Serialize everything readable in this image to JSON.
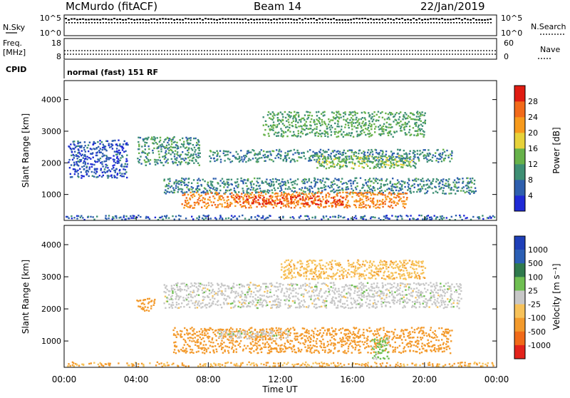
{
  "header": {
    "station": "McMurdo (fitACF)",
    "beam": "Beam 14",
    "date": "22/Jan/2019"
  },
  "strips": {
    "nsky_label": "N.Sky",
    "nsky_ticks": [
      "10^5",
      "10^0"
    ],
    "nsearch_label": "N.Search",
    "nsearch_ticks": [
      "10^5",
      "10^0"
    ],
    "freq_label_1": "Freq.",
    "freq_label_2": "[MHz]",
    "freq_ticks": [
      "18",
      "8"
    ],
    "nave_label": "Nave",
    "nave_ticks": [
      "60",
      "0"
    ],
    "cpid_label": "CPID",
    "cpid_value": "normal (fast) 151 RF"
  },
  "colors": {
    "power": [
      "#1f2ad6",
      "#2e5fae",
      "#3e8f74",
      "#67b24a",
      "#e7d23a",
      "#f79a1c",
      "#f26a1a",
      "#e01c12"
    ],
    "velocity": [
      "#e3231b",
      "#f16a18",
      "#f39a2c",
      "#f7c25a",
      "#c7c7c7",
      "#6fbf52",
      "#2f7a4d",
      "#2b5fb4",
      "#1e3fb8"
    ]
  },
  "chart_data": [
    {
      "type": "heatmap",
      "panel": "power",
      "ylabel": "Slant Range [km]",
      "ylim": [
        180,
        4600
      ],
      "yticks": [
        "1000",
        "2000",
        "3000",
        "4000"
      ],
      "colorbar_label": "Power [dB]",
      "colorbar_ticks": [
        "4",
        "8",
        "12",
        "16",
        "20",
        "24",
        "28"
      ],
      "colorbar_range": [
        0,
        32
      ],
      "echo_regions": [
        {
          "t0": 0.0,
          "t1": 24.0,
          "r0": 180,
          "r1": 320,
          "value": 6
        },
        {
          "t0": 0.2,
          "t1": 3.5,
          "r0": 1500,
          "r1": 2700,
          "value": 5
        },
        {
          "t0": 4.0,
          "t1": 7.5,
          "r0": 1900,
          "r1": 2800,
          "value": 10
        },
        {
          "t0": 5.5,
          "t1": 22.8,
          "r0": 1000,
          "r1": 1500,
          "value": 9
        },
        {
          "t0": 6.5,
          "t1": 19.0,
          "r0": 550,
          "r1": 1050,
          "value": 24
        },
        {
          "t0": 9.5,
          "t1": 15.5,
          "r0": 650,
          "r1": 950,
          "value": 29
        },
        {
          "t0": 8.0,
          "t1": 21.5,
          "r0": 2000,
          "r1": 2400,
          "value": 9
        },
        {
          "t0": 14.0,
          "t1": 19.5,
          "r0": 1800,
          "r1": 2200,
          "value": 14
        },
        {
          "t0": 11.0,
          "t1": 20.0,
          "r0": 2800,
          "r1": 3600,
          "value": 12
        }
      ]
    },
    {
      "type": "heatmap",
      "panel": "velocity",
      "ylabel": "Slant Range [km]",
      "xlabel": "Time UT",
      "ylim": [
        180,
        4600
      ],
      "yticks": [
        "1000",
        "2000",
        "3000",
        "4000"
      ],
      "xticks": [
        "00:00",
        "04:00",
        "08:00",
        "12:00",
        "16:00",
        "20:00",
        "00:00"
      ],
      "colorbar_label": "Velocity [m s⁻¹]",
      "colorbar_ticks": [
        "1000",
        "500",
        "100",
        "25",
        "-25",
        "-100",
        "-500",
        "-1000"
      ],
      "echo_regions": [
        {
          "t0": 0.0,
          "t1": 24.0,
          "r0": 180,
          "r1": 320,
          "value": -100
        },
        {
          "t0": 4.0,
          "t1": 5.0,
          "r0": 1900,
          "r1": 2300,
          "value": -300
        },
        {
          "t0": 5.5,
          "t1": 22.0,
          "r0": 2000,
          "r1": 2800,
          "value": 0
        },
        {
          "t0": 6.0,
          "t1": 21.5,
          "r0": 600,
          "r1": 1400,
          "value": -200
        },
        {
          "t0": 8.5,
          "t1": 12.5,
          "r0": 1050,
          "r1": 1300,
          "value": 0
        },
        {
          "t0": 17.0,
          "t1": 18.0,
          "r0": 400,
          "r1": 1100,
          "value": 50
        },
        {
          "t0": 12.0,
          "t1": 20.0,
          "r0": 2900,
          "r1": 3500,
          "value": -80
        }
      ]
    }
  ]
}
